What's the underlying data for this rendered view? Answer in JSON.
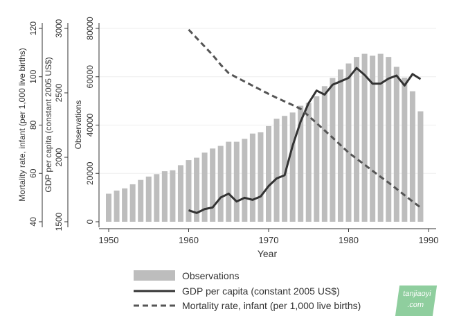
{
  "chart_data": {
    "type": "bar+line",
    "xlabel": "Year",
    "x_ticks": [
      "1950",
      "1960",
      "1970",
      "1980",
      "1990"
    ],
    "xlim": [
      1950,
      1990
    ],
    "axes": {
      "observations": {
        "label": "Observations",
        "ylim": [
          0,
          80000
        ],
        "ticks": [
          "0",
          "20000",
          "40000",
          "60000",
          "80000"
        ],
        "tick_values": [
          0,
          20000,
          40000,
          60000,
          80000
        ]
      },
      "gdp": {
        "label": "GDP per capita (constant 2005 US$)",
        "ylim": [
          1500,
          3000
        ],
        "ticks": [
          "1500",
          "2000",
          "2500",
          "3000"
        ],
        "tick_values": [
          1500,
          2000,
          2500,
          3000
        ]
      },
      "mortality": {
        "label": "Mortality rate, infant (per 1,000 live births)",
        "ylim": [
          40,
          120
        ],
        "ticks": [
          "40",
          "60",
          "80",
          "100",
          "120"
        ],
        "tick_values": [
          40,
          60,
          80,
          100,
          120
        ]
      }
    },
    "grid": true,
    "legend_position": "bottom",
    "series": [
      {
        "name": "Observations",
        "type": "bar",
        "axis": "observations",
        "color": "#bdbdbd",
        "x": [
          1950,
          1951,
          1952,
          1953,
          1954,
          1955,
          1956,
          1957,
          1958,
          1959,
          1960,
          1961,
          1962,
          1963,
          1964,
          1965,
          1966,
          1967,
          1968,
          1969,
          1970,
          1971,
          1972,
          1973,
          1974,
          1975,
          1976,
          1977,
          1978,
          1979,
          1980,
          1981,
          1982,
          1983,
          1984,
          1985,
          1986,
          1987,
          1988,
          1989
        ],
        "values": [
          11600,
          12900,
          13800,
          15500,
          17300,
          18700,
          19700,
          20900,
          21300,
          23400,
          25500,
          26500,
          28600,
          30300,
          31400,
          33100,
          33100,
          34300,
          36500,
          37000,
          39600,
          42600,
          43800,
          45200,
          48000,
          49200,
          51900,
          56100,
          59500,
          63000,
          65500,
          68200,
          69500,
          68700,
          69500,
          68200,
          64100,
          59600,
          54000,
          45700
        ]
      },
      {
        "name": "GDP per capita (constant 2005 US$)",
        "type": "line",
        "axis": "gdp",
        "color": "#333333",
        "dash": "solid",
        "x": [
          1960,
          1961,
          1962,
          1963,
          1964,
          1965,
          1966,
          1967,
          1968,
          1969,
          1970,
          1971,
          1972,
          1973,
          1974,
          1975,
          1976,
          1977,
          1978,
          1979,
          1980,
          1981,
          1982,
          1983,
          1984,
          1985,
          1986,
          1987,
          1988,
          1989
        ],
        "values": [
          1589,
          1568,
          1598,
          1611,
          1688,
          1718,
          1657,
          1686,
          1670,
          1696,
          1777,
          1836,
          1861,
          2089,
          2277,
          2420,
          2518,
          2486,
          2563,
          2589,
          2616,
          2693,
          2639,
          2571,
          2571,
          2611,
          2634,
          2557,
          2646,
          2607
        ]
      },
      {
        "name": "Mortality rate, infant (per 1,000 live births)",
        "type": "line",
        "axis": "mortality",
        "color": "#555555",
        "dash": "dashed",
        "x": [
          1960,
          1961,
          1962,
          1963,
          1964,
          1965,
          1966,
          1967,
          1968,
          1969,
          1970,
          1971,
          1972,
          1973,
          1974,
          1975,
          1976,
          1977,
          1978,
          1979,
          1980,
          1981,
          1982,
          1983,
          1984,
          1985,
          1986,
          1987,
          1988,
          1989
        ],
        "values": [
          119.5,
          116,
          112.5,
          109,
          105,
          101.5,
          99.7,
          98,
          96.3,
          94.6,
          92.9,
          91.3,
          89.8,
          88.3,
          86.7,
          83.8,
          80.8,
          77.8,
          74.8,
          71.7,
          68.6,
          66.1,
          63.6,
          61.1,
          58.6,
          56.2,
          53.6,
          51.0,
          48.4,
          45.9
        ]
      }
    ]
  },
  "watermark": {
    "text": "tanjiaoyi",
    "domain": ".com"
  }
}
